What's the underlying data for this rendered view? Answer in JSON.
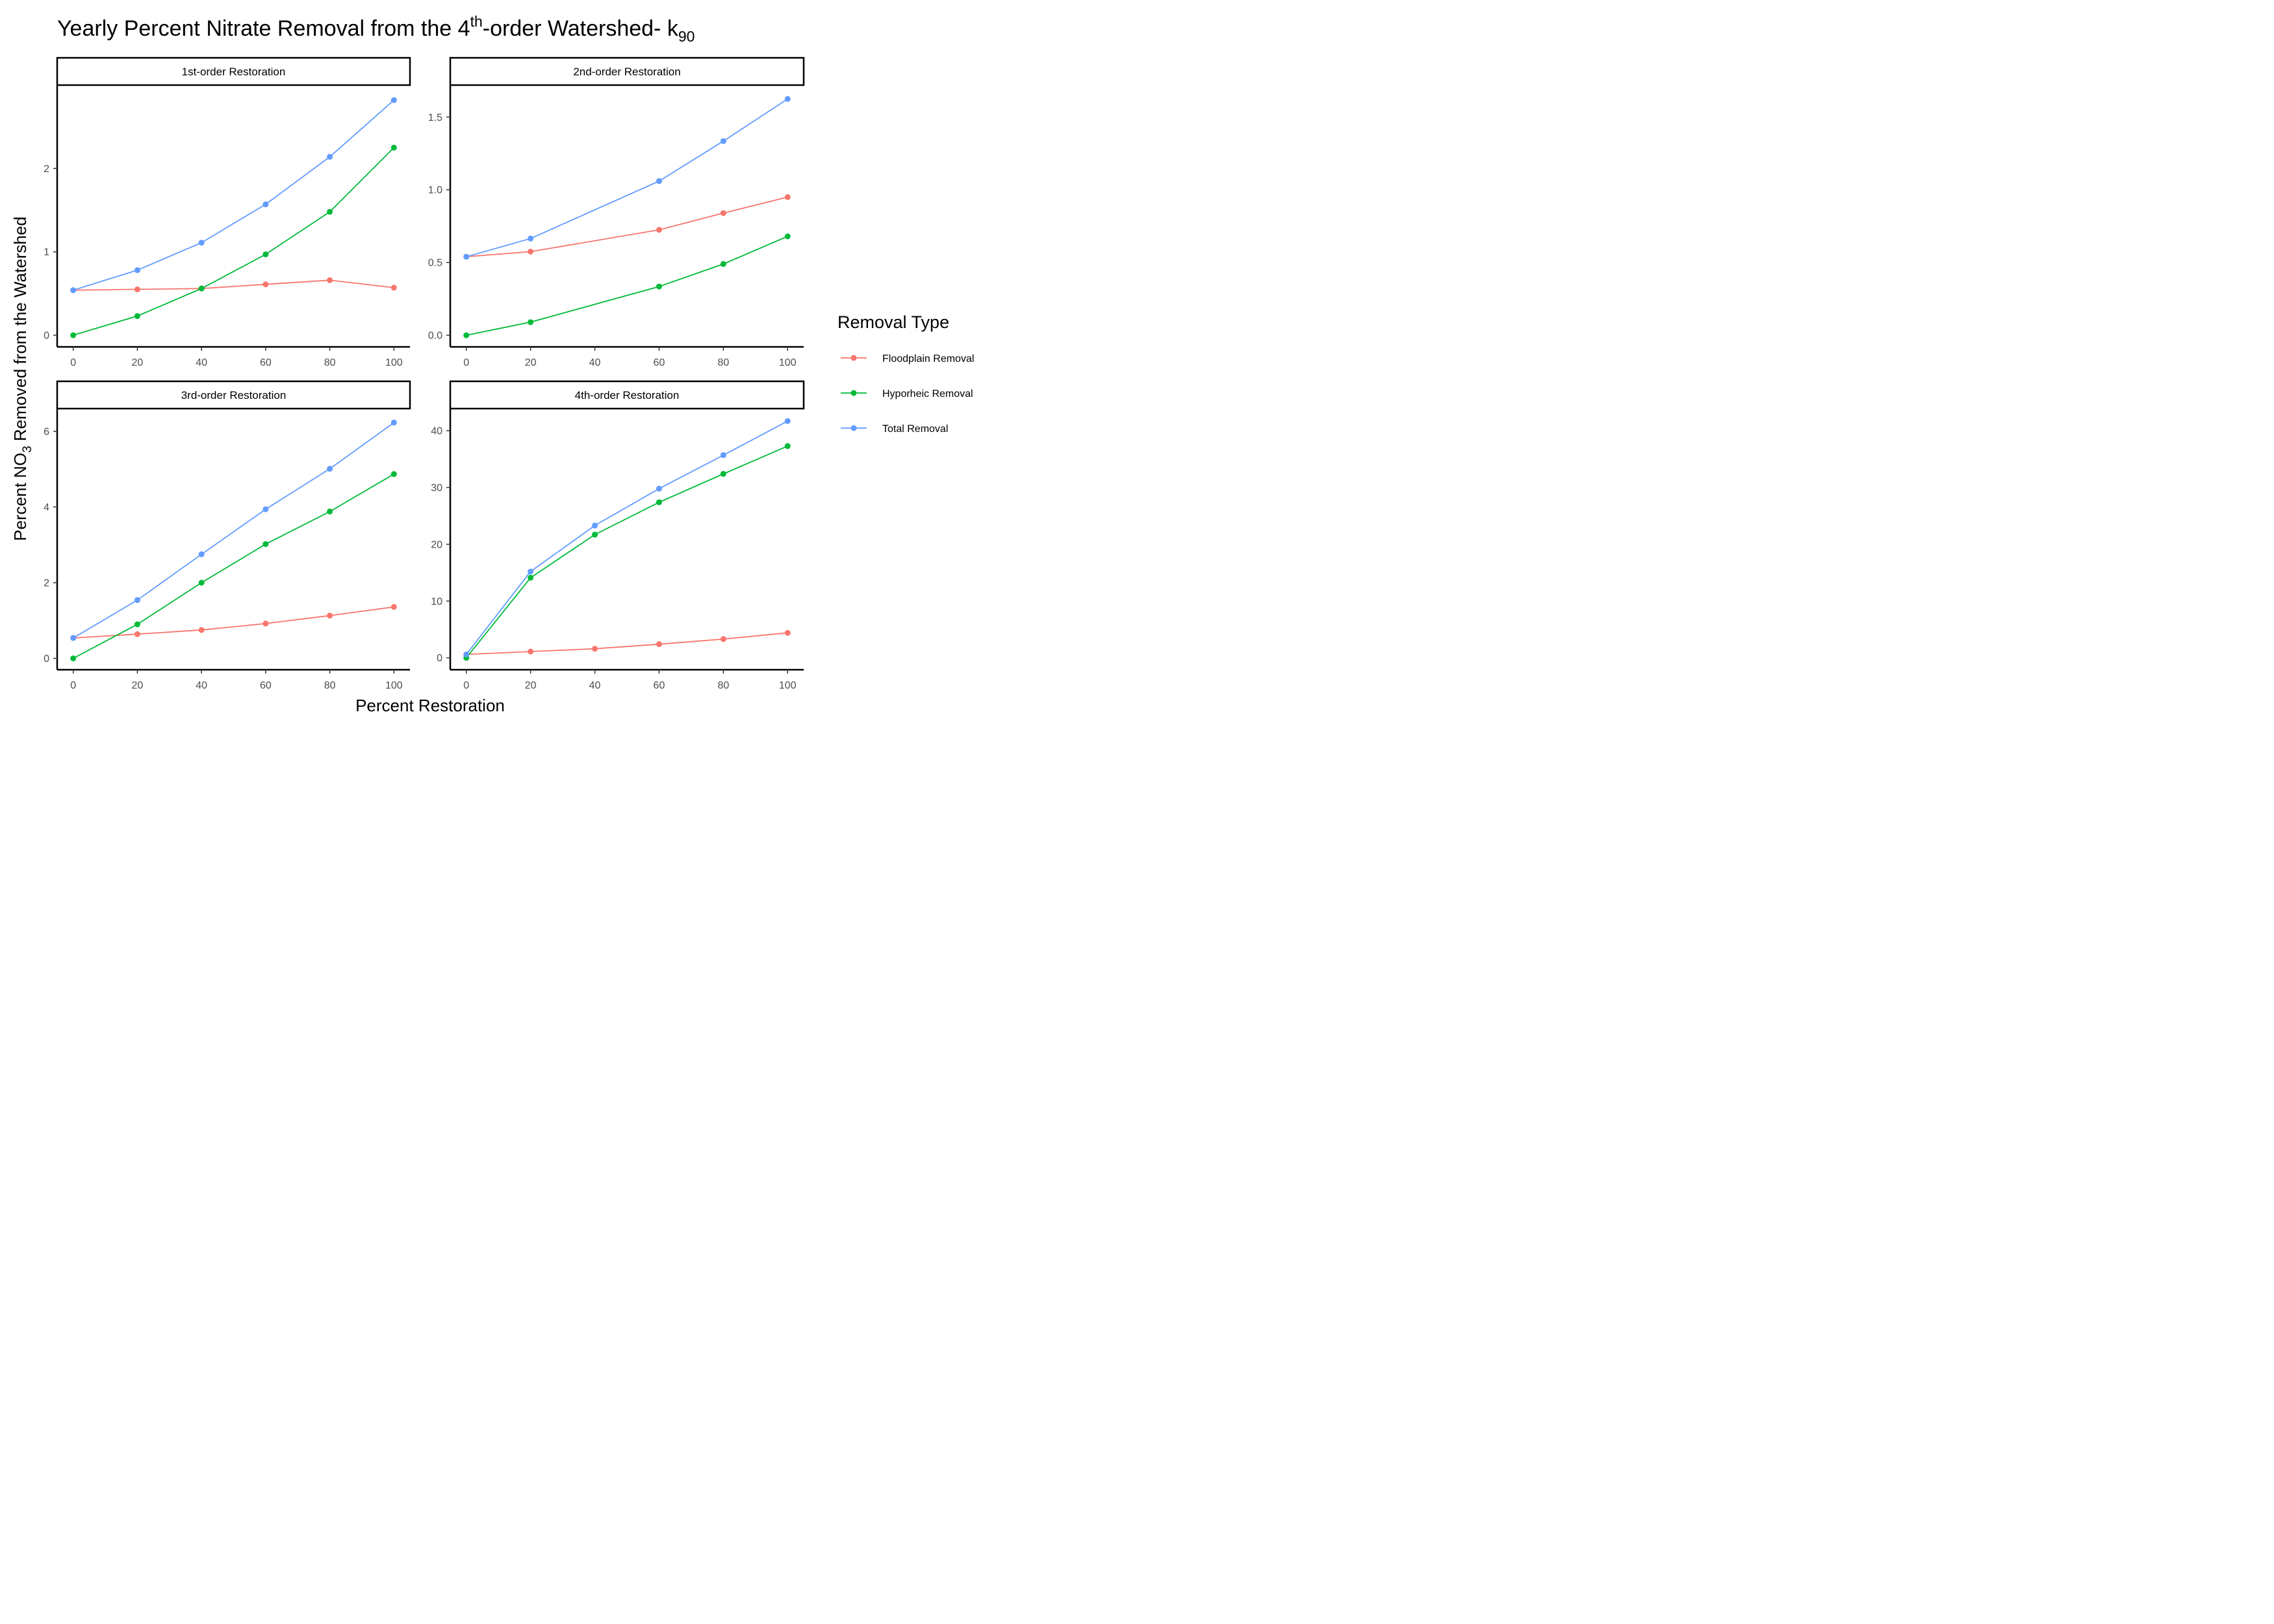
{
  "title": {
    "pre": "Yearly Percent Nitrate Removal from the 4",
    "sup": "th",
    "mid": "-order Watershed- k",
    "sub": "90"
  },
  "xlabel": "Percent Restoration",
  "ylabel": {
    "pre": "Percent NO",
    "sub": "3",
    "post": " Removed from the Watershed"
  },
  "legend": {
    "title": "Removal Type",
    "position": "right"
  },
  "colors": {
    "floodplain": "#F8766D",
    "hyporheic": "#00BA38",
    "total": "#619CFF",
    "axis": "#000000",
    "tick_text": "#4d4d4d"
  },
  "chart_data": [
    {
      "type": "line",
      "panel": "1st-order Restoration",
      "x": [
        0,
        20,
        40,
        60,
        80,
        100
      ],
      "xticks": [
        0,
        20,
        40,
        60,
        80,
        100
      ],
      "xlim": [
        -5,
        105
      ],
      "yticks": [
        0,
        1,
        2
      ],
      "ytick_labels": [
        "0",
        "1",
        "2"
      ],
      "ylim": [
        -0.14,
        3.0
      ],
      "grid": false,
      "series": [
        {
          "name": "Floodplain Removal",
          "values": [
            0.54,
            0.55,
            0.56,
            0.61,
            0.66,
            0.57
          ]
        },
        {
          "name": "Hyporheic Removal",
          "values": [
            0.0,
            0.23,
            0.56,
            0.97,
            1.48,
            2.25
          ]
        },
        {
          "name": "Total Removal",
          "values": [
            0.54,
            0.78,
            1.11,
            1.57,
            2.14,
            2.82
          ]
        }
      ]
    },
    {
      "type": "line",
      "panel": "2nd-order Restoration",
      "x": [
        0,
        20,
        60,
        80,
        100
      ],
      "xticks": [
        0,
        20,
        40,
        60,
        80,
        100
      ],
      "xlim": [
        -5,
        105
      ],
      "yticks": [
        0.0,
        0.5,
        1.0,
        1.5
      ],
      "ytick_labels": [
        "0.0",
        "0.5",
        "1.0",
        "1.5"
      ],
      "ylim": [
        -0.08,
        1.72
      ],
      "grid": false,
      "series": [
        {
          "name": "Floodplain Removal",
          "values": [
            0.54,
            0.575,
            0.725,
            0.84,
            0.95
          ]
        },
        {
          "name": "Hyporheic Removal",
          "values": [
            0.0,
            0.09,
            0.335,
            0.49,
            0.68
          ]
        },
        {
          "name": "Total Removal",
          "values": [
            0.54,
            0.665,
            1.06,
            1.335,
            1.625
          ]
        }
      ]
    },
    {
      "type": "line",
      "panel": "3rd-order Restoration",
      "x": [
        0,
        20,
        40,
        60,
        80,
        100
      ],
      "xticks": [
        0,
        20,
        40,
        60,
        80,
        100
      ],
      "xlim": [
        -5,
        105
      ],
      "yticks": [
        0,
        2,
        4,
        6
      ],
      "ytick_labels": [
        "0",
        "2",
        "4",
        "6"
      ],
      "ylim": [
        -0.3,
        6.6
      ],
      "grid": false,
      "series": [
        {
          "name": "Floodplain Removal",
          "values": [
            0.54,
            0.64,
            0.75,
            0.92,
            1.13,
            1.36
          ]
        },
        {
          "name": "Hyporheic Removal",
          "values": [
            0.0,
            0.9,
            2.0,
            3.02,
            3.88,
            4.87
          ]
        },
        {
          "name": "Total Removal",
          "values": [
            0.54,
            1.54,
            2.75,
            3.94,
            5.01,
            6.23
          ]
        }
      ]
    },
    {
      "type": "line",
      "panel": "4th-order Restoration",
      "x": [
        0,
        20,
        40,
        60,
        80,
        100
      ],
      "xticks": [
        0,
        20,
        40,
        60,
        80,
        100
      ],
      "xlim": [
        -5,
        105
      ],
      "yticks": [
        0,
        10,
        20,
        30,
        40
      ],
      "ytick_labels": [
        "0",
        "10",
        "20",
        "30",
        "40"
      ],
      "ylim": [
        -2.1,
        43.9
      ],
      "grid": false,
      "series": [
        {
          "name": "Floodplain Removal",
          "values": [
            0.6,
            1.1,
            1.6,
            2.4,
            3.3,
            4.4
          ]
        },
        {
          "name": "Hyporheic Removal",
          "values": [
            0.0,
            14.1,
            21.7,
            27.4,
            32.4,
            37.3
          ]
        },
        {
          "name": "Total Removal",
          "values": [
            0.6,
            15.2,
            23.3,
            29.8,
            35.7,
            41.7
          ]
        }
      ]
    }
  ]
}
